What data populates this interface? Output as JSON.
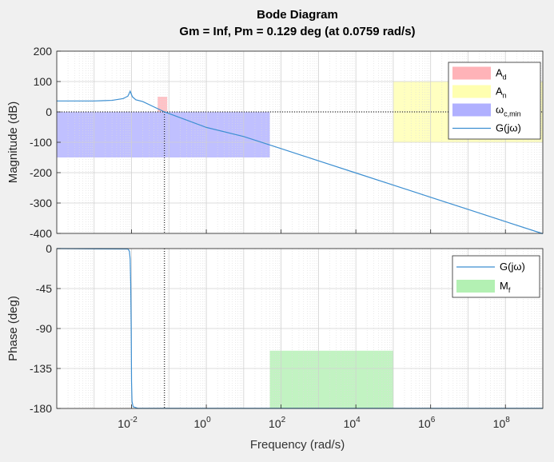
{
  "figure": {
    "title": "Bode Diagram",
    "subtitle": "Gm = Inf,  Pm = 0.129 deg (at 0.0759 rad/s)",
    "xlabel": "Frequency  (rad/s)"
  },
  "chart_data": [
    {
      "type": "line",
      "panel": "magnitude",
      "ylabel": "Magnitude (dB)",
      "xscale": "log",
      "xlim": [
        0.0001,
        1000000000
      ],
      "ylim": [
        -400,
        200
      ],
      "yticks": [
        200,
        100,
        0,
        -100,
        -200,
        -300,
        -400
      ],
      "xticks": [
        {
          "value": 0.01,
          "base": "10",
          "exp": "-2"
        },
        {
          "value": 1,
          "base": "10",
          "exp": "0"
        },
        {
          "value": 100,
          "base": "10",
          "exp": "2"
        },
        {
          "value": 10000,
          "base": "10",
          "exp": "4"
        },
        {
          "value": 1000000,
          "base": "10",
          "exp": "6"
        },
        {
          "value": 100000000,
          "base": "10",
          "exp": "8"
        }
      ],
      "grid": true,
      "legend_position": "top-right",
      "series": [
        {
          "name": "G(jω)",
          "color": "#3d8fd1",
          "points": [
            [
              0.0001,
              36
            ],
            [
              0.001,
              36
            ],
            [
              0.003,
              38
            ],
            [
              0.006,
              44
            ],
            [
              0.008,
              52
            ],
            [
              0.0092,
              68
            ],
            [
              0.0105,
              50
            ],
            [
              0.013,
              40
            ],
            [
              0.02,
              34
            ],
            [
              0.0759,
              0
            ],
            [
              1,
              -51
            ],
            [
              10,
              -81
            ],
            [
              100,
              -121
            ],
            [
              1000,
              -161
            ],
            [
              10000,
              -201
            ],
            [
              100000,
              -241
            ],
            [
              1000000,
              -281
            ],
            [
              10000000,
              -321
            ],
            [
              100000000,
              -361
            ],
            [
              1000000000,
              -401
            ]
          ]
        }
      ],
      "regions": [
        {
          "name": "A_d",
          "label_main": "A",
          "label_sub": "d",
          "color": "#ffb3b8",
          "x": [
            0.05,
            0.09
          ],
          "y": [
            0,
            50
          ]
        },
        {
          "name": "A_n",
          "label_main": "A",
          "label_sub": "n",
          "color": "#ffffb0",
          "x": [
            100000,
            1000000000
          ],
          "y": [
            -100,
            100
          ]
        },
        {
          "name": "ω_c,min",
          "label_main": "ω",
          "label_sub": "c,min",
          "color": "#b0b0ff",
          "x": [
            0.0001,
            50
          ],
          "y": [
            -150,
            0
          ]
        }
      ],
      "crossover": {
        "x": 0.0759,
        "y": 0
      }
    },
    {
      "type": "line",
      "panel": "phase",
      "ylabel": "Phase (deg)",
      "xscale": "log",
      "xlim": [
        0.0001,
        1000000000
      ],
      "ylim": [
        -180,
        0
      ],
      "yticks": [
        0,
        -45,
        -90,
        -135,
        -180
      ],
      "grid": true,
      "legend_position": "top-right",
      "series": [
        {
          "name": "G(jω)",
          "color": "#3d8fd1",
          "points": [
            [
              0.0001,
              0
            ],
            [
              0.008,
              -0.5
            ],
            [
              0.0088,
              -3
            ],
            [
              0.0092,
              -12
            ],
            [
              0.0095,
              -40
            ],
            [
              0.0098,
              -90
            ],
            [
              0.01,
              -150
            ],
            [
              0.0103,
              -172
            ],
            [
              0.011,
              -178
            ],
            [
              0.015,
              -179.9
            ],
            [
              1000000000,
              -179.9
            ]
          ]
        }
      ],
      "regions": [
        {
          "name": "M_f",
          "label_main": "M",
          "label_sub": "f",
          "color": "#b3f0b3",
          "x": [
            50,
            100000
          ],
          "y": [
            -180,
            -115
          ]
        }
      ],
      "crossover": {
        "x": 0.0759
      }
    }
  ]
}
